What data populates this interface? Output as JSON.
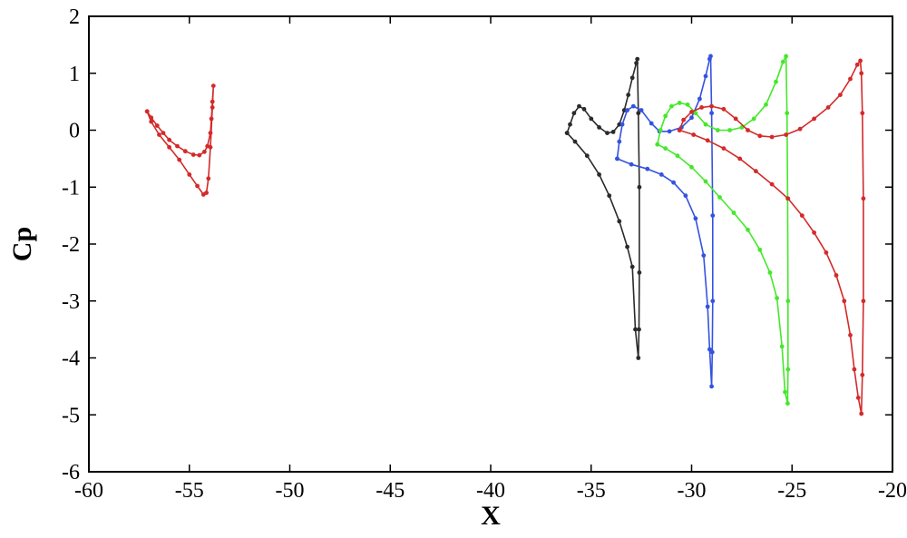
{
  "chart_data": {
    "type": "line",
    "xlabel": "X",
    "ylabel": "Cp",
    "xlim": [
      -60,
      -20
    ],
    "ylim": [
      -6,
      2
    ],
    "grid": false,
    "xticks": [
      -60,
      -55,
      -50,
      -45,
      -40,
      -35,
      -30,
      -25,
      -20
    ],
    "yticks": [
      2,
      1,
      0,
      -1,
      -2,
      -3,
      -4,
      -5,
      -6
    ],
    "series": [
      {
        "color": "#d42a2a",
        "points": [
          [
            -57.1,
            0.33
          ],
          [
            -56.9,
            0.22
          ],
          [
            -56.6,
            0.08
          ],
          [
            -56.3,
            -0.05
          ],
          [
            -56.0,
            -0.17
          ],
          [
            -55.6,
            -0.28
          ],
          [
            -55.2,
            -0.37
          ],
          [
            -54.8,
            -0.43
          ],
          [
            -54.5,
            -0.44
          ],
          [
            -54.25,
            -0.38
          ],
          [
            -54.1,
            -0.28
          ],
          [
            -53.95,
            -0.05
          ],
          [
            -53.9,
            0.2
          ],
          [
            -53.85,
            0.5
          ],
          [
            -53.8,
            0.78
          ],
          [
            -53.85,
            0.4
          ],
          [
            -53.95,
            -0.3
          ],
          [
            -54.05,
            -0.85
          ],
          [
            -54.15,
            -1.1
          ],
          [
            -54.3,
            -1.13
          ],
          [
            -54.6,
            -0.98
          ],
          [
            -55.0,
            -0.78
          ],
          [
            -55.5,
            -0.52
          ],
          [
            -56.0,
            -0.3
          ],
          [
            -56.5,
            -0.08
          ],
          [
            -56.9,
            0.15
          ],
          [
            -57.1,
            0.33
          ]
        ]
      },
      {
        "color": "#2b2b2b",
        "points": [
          [
            -36.2,
            -0.05
          ],
          [
            -36.05,
            0.1
          ],
          [
            -35.85,
            0.3
          ],
          [
            -35.6,
            0.42
          ],
          [
            -35.35,
            0.37
          ],
          [
            -35.0,
            0.2
          ],
          [
            -34.6,
            0.05
          ],
          [
            -34.2,
            -0.05
          ],
          [
            -33.9,
            -0.03
          ],
          [
            -33.6,
            0.1
          ],
          [
            -33.35,
            0.35
          ],
          [
            -33.15,
            0.62
          ],
          [
            -32.95,
            0.92
          ],
          [
            -32.75,
            1.18
          ],
          [
            -32.7,
            1.25
          ],
          [
            -32.65,
            0.3
          ],
          [
            -32.6,
            -1.0
          ],
          [
            -32.6,
            -2.5
          ],
          [
            -32.62,
            -3.5
          ],
          [
            -32.65,
            -4.0
          ],
          [
            -32.8,
            -3.5
          ],
          [
            -32.95,
            -2.4
          ],
          [
            -33.2,
            -2.05
          ],
          [
            -33.6,
            -1.6
          ],
          [
            -34.1,
            -1.15
          ],
          [
            -34.6,
            -0.78
          ],
          [
            -35.2,
            -0.45
          ],
          [
            -35.8,
            -0.2
          ],
          [
            -36.2,
            -0.05
          ]
        ]
      },
      {
        "color": "#3552e0",
        "points": [
          [
            -33.7,
            -0.5
          ],
          [
            -33.6,
            -0.2
          ],
          [
            -33.45,
            0.1
          ],
          [
            -33.2,
            0.35
          ],
          [
            -32.9,
            0.42
          ],
          [
            -32.5,
            0.35
          ],
          [
            -32.0,
            0.12
          ],
          [
            -31.6,
            -0.02
          ],
          [
            -31.1,
            -0.02
          ],
          [
            -30.5,
            0.05
          ],
          [
            -30.0,
            0.22
          ],
          [
            -29.6,
            0.55
          ],
          [
            -29.3,
            0.95
          ],
          [
            -29.1,
            1.25
          ],
          [
            -29.05,
            1.3
          ],
          [
            -29.0,
            0.3
          ],
          [
            -28.95,
            -1.5
          ],
          [
            -28.95,
            -3.0
          ],
          [
            -28.97,
            -3.9
          ],
          [
            -29.0,
            -4.5
          ],
          [
            -29.1,
            -3.85
          ],
          [
            -29.2,
            -3.1
          ],
          [
            -29.4,
            -2.2
          ],
          [
            -29.8,
            -1.55
          ],
          [
            -30.3,
            -1.15
          ],
          [
            -30.9,
            -0.92
          ],
          [
            -31.5,
            -0.78
          ],
          [
            -32.2,
            -0.68
          ],
          [
            -33.0,
            -0.6
          ],
          [
            -33.7,
            -0.5
          ]
        ]
      },
      {
        "color": "#44e82a",
        "points": [
          [
            -31.7,
            -0.25
          ],
          [
            -31.55,
            0.0
          ],
          [
            -31.3,
            0.25
          ],
          [
            -31.0,
            0.42
          ],
          [
            -30.6,
            0.48
          ],
          [
            -30.2,
            0.45
          ],
          [
            -29.8,
            0.3
          ],
          [
            -29.3,
            0.1
          ],
          [
            -28.7,
            0.0
          ],
          [
            -28.1,
            0.0
          ],
          [
            -27.5,
            0.05
          ],
          [
            -26.9,
            0.2
          ],
          [
            -26.3,
            0.45
          ],
          [
            -25.8,
            0.85
          ],
          [
            -25.45,
            1.2
          ],
          [
            -25.3,
            1.3
          ],
          [
            -25.25,
            0.3
          ],
          [
            -25.22,
            -1.2
          ],
          [
            -25.2,
            -3.0
          ],
          [
            -25.2,
            -4.2
          ],
          [
            -25.22,
            -4.8
          ],
          [
            -25.35,
            -4.6
          ],
          [
            -25.5,
            -3.8
          ],
          [
            -25.75,
            -2.95
          ],
          [
            -26.1,
            -2.5
          ],
          [
            -26.6,
            -2.1
          ],
          [
            -27.2,
            -1.75
          ],
          [
            -27.9,
            -1.45
          ],
          [
            -28.6,
            -1.18
          ],
          [
            -29.3,
            -0.9
          ],
          [
            -30.0,
            -0.65
          ],
          [
            -30.7,
            -0.45
          ],
          [
            -31.3,
            -0.32
          ],
          [
            -31.7,
            -0.25
          ]
        ]
      },
      {
        "color": "#d42a2a",
        "points": [
          [
            -30.6,
            0.0
          ],
          [
            -30.4,
            0.18
          ],
          [
            -30.0,
            0.32
          ],
          [
            -29.5,
            0.4
          ],
          [
            -29.0,
            0.42
          ],
          [
            -28.4,
            0.37
          ],
          [
            -27.8,
            0.2
          ],
          [
            -27.2,
            0.0
          ],
          [
            -26.6,
            -0.1
          ],
          [
            -26.0,
            -0.12
          ],
          [
            -25.3,
            -0.08
          ],
          [
            -24.6,
            0.02
          ],
          [
            -23.9,
            0.2
          ],
          [
            -23.2,
            0.4
          ],
          [
            -22.6,
            0.62
          ],
          [
            -22.1,
            0.9
          ],
          [
            -21.75,
            1.15
          ],
          [
            -21.6,
            1.22
          ],
          [
            -21.55,
            1.0
          ],
          [
            -21.5,
            0.3
          ],
          [
            -21.45,
            -1.2
          ],
          [
            -21.45,
            -3.0
          ],
          [
            -21.5,
            -4.3
          ],
          [
            -21.55,
            -4.98
          ],
          [
            -21.7,
            -4.7
          ],
          [
            -21.9,
            -4.2
          ],
          [
            -22.1,
            -3.6
          ],
          [
            -22.4,
            -3.0
          ],
          [
            -22.8,
            -2.55
          ],
          [
            -23.3,
            -2.15
          ],
          [
            -23.9,
            -1.8
          ],
          [
            -24.5,
            -1.5
          ],
          [
            -25.2,
            -1.2
          ],
          [
            -26.0,
            -0.95
          ],
          [
            -26.8,
            -0.72
          ],
          [
            -27.6,
            -0.5
          ],
          [
            -28.4,
            -0.32
          ],
          [
            -29.2,
            -0.18
          ],
          [
            -29.9,
            -0.08
          ],
          [
            -30.6,
            0.0
          ]
        ]
      }
    ]
  }
}
